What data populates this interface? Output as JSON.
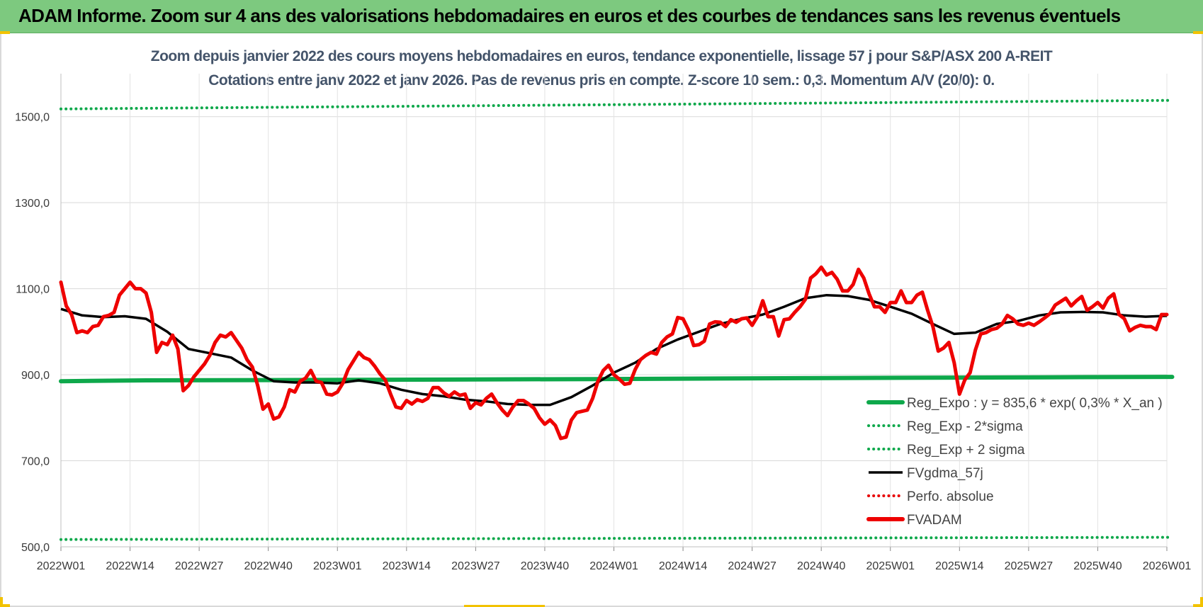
{
  "header": {
    "title": "ADAM Informe. Zoom sur 4 ans des valorisations hebdomadaires en euros et des courbes de tendances sans les revenus éventuels"
  },
  "chart_data": {
    "type": "line",
    "title": "Zoom depuis janvier 2022 des cours moyens hebdomadaires en euros, tendance exponentielle, lissage 57 j pour S&P/ASX 200 A-REIT",
    "subtitle": "Cotations entre janv 2022 et janv 2026. Pas de revenus pris en compte. Z-score 10 sem.: 0,3. Momentum A/V (20/0): 0.",
    "xlabel": "",
    "ylabel": "",
    "ylim": [
      500,
      1600
    ],
    "y_ticks": [
      "500,0",
      "700,0",
      "900,0",
      "1100,0",
      "1300,0",
      "1500,0"
    ],
    "y_tick_values": [
      500,
      700,
      900,
      1100,
      1300,
      1500
    ],
    "x_tick_labels": [
      "2022W01",
      "2022W14",
      "2022W27",
      "2022W40",
      "2023W01",
      "2023W14",
      "2023W27",
      "2023W40",
      "2024W01",
      "2024W14",
      "2024W27",
      "2024W40",
      "2025W01",
      "2025W14",
      "2025W27",
      "2025W40",
      "2026W01"
    ],
    "x_tick_weeks": [
      0,
      13,
      26,
      39,
      52,
      65,
      78,
      91,
      104,
      117,
      130,
      143,
      156,
      169,
      182,
      195,
      208
    ],
    "grid": true,
    "legend_position": "bottom-right",
    "series": [
      {
        "name": "Reg_Expo : y = 835,6 * exp( 0,3% *  X_an )",
        "color": "#0ea84b",
        "style": "solid-thick",
        "x": [
          0,
          16,
          50,
          100,
          140,
          185,
          209
        ],
        "values": [
          885,
          887,
          888,
          890,
          892,
          894,
          895
        ]
      },
      {
        "name": "Reg_Exp - 2*sigma",
        "color": "#0ea84b",
        "style": "dotted",
        "x": [
          0,
          209
        ],
        "values": [
          517,
          522
        ]
      },
      {
        "name": "Reg_Exp + 2 sigma",
        "color": "#0ea84b",
        "style": "dotted",
        "x": [
          0,
          209
        ],
        "values": [
          1518,
          1538
        ]
      },
      {
        "name": "FVgdma_57j",
        "color": "#000000",
        "style": "solid",
        "x": [
          0,
          4,
          8,
          12,
          16,
          20,
          24,
          28,
          32,
          36,
          40,
          44,
          48,
          52,
          56,
          60,
          64,
          68,
          72,
          76,
          80,
          84,
          88,
          92,
          96,
          100,
          104,
          108,
          112,
          116,
          120,
          124,
          128,
          132,
          136,
          140,
          144,
          148,
          152,
          156,
          160,
          164,
          168,
          172,
          176,
          180,
          184,
          188,
          192,
          196,
          200,
          204,
          208
        ],
        "values": [
          1053,
          1038,
          1034,
          1036,
          1030,
          1000,
          960,
          950,
          940,
          910,
          885,
          882,
          882,
          880,
          887,
          880,
          865,
          855,
          850,
          842,
          838,
          832,
          830,
          830,
          848,
          875,
          905,
          928,
          960,
          982,
          1000,
          1018,
          1030,
          1040,
          1058,
          1078,
          1085,
          1083,
          1074,
          1058,
          1042,
          1018,
          995,
          998,
          1018,
          1025,
          1038,
          1045,
          1046,
          1045,
          1038,
          1035,
          1037
        ]
      },
      {
        "name": "Perfo. absolue",
        "color": "#e80000",
        "style": "dotted",
        "x": [],
        "values": []
      },
      {
        "name": "FVADAM",
        "color": "#ee0000",
        "style": "solid-thick",
        "x": [
          0,
          1,
          2,
          3,
          4,
          5,
          6,
          7,
          8,
          9,
          10,
          11,
          12,
          13,
          14,
          15,
          16,
          17,
          18,
          19,
          20,
          21,
          22,
          23,
          24,
          25,
          26,
          27,
          28,
          29,
          30,
          31,
          32,
          33,
          34,
          35,
          36,
          37,
          38,
          39,
          40,
          41,
          42,
          43,
          44,
          45,
          46,
          47,
          48,
          49,
          50,
          51,
          52,
          53,
          54,
          55,
          56,
          57,
          58,
          59,
          60,
          61,
          62,
          63,
          64,
          65,
          66,
          67,
          68,
          69,
          70,
          71,
          72,
          73,
          74,
          75,
          76,
          77,
          78,
          79,
          80,
          81,
          82,
          83,
          84,
          85,
          86,
          87,
          88,
          89,
          90,
          91,
          92,
          93,
          94,
          95,
          96,
          97,
          98,
          99,
          100,
          101,
          102,
          103,
          104,
          105,
          106,
          107,
          108,
          109,
          110,
          111,
          112,
          113,
          114,
          115,
          116,
          117,
          118,
          119,
          120,
          121,
          122,
          123,
          124,
          125,
          126,
          127,
          128,
          129,
          130,
          131,
          132,
          133,
          134,
          135,
          136,
          137,
          138,
          139,
          140,
          141,
          142,
          143,
          144,
          145,
          146,
          147,
          148,
          149,
          150,
          151,
          152,
          153,
          154,
          155,
          156,
          157,
          158,
          159,
          160,
          161,
          162,
          163,
          164,
          165,
          166,
          167,
          168,
          169,
          170,
          171,
          172,
          173,
          174,
          175,
          176,
          177,
          178,
          179,
          180,
          181,
          182,
          183,
          184,
          185,
          186,
          187,
          188,
          189,
          190,
          191,
          192,
          193,
          194,
          195,
          196,
          197,
          198,
          199,
          200,
          201,
          202,
          203,
          204,
          205,
          206,
          207,
          208
        ],
        "values": [
          1115,
          1060,
          1040,
          998,
          1002,
          998,
          1012,
          1015,
          1035,
          1038,
          1045,
          1085,
          1100,
          1115,
          1100,
          1100,
          1090,
          1045,
          952,
          975,
          970,
          992,
          960,
          863,
          875,
          895,
          910,
          925,
          945,
          975,
          992,
          988,
          998,
          980,
          962,
          935,
          918,
          875,
          820,
          832,
          797,
          802,
          825,
          865,
          860,
          885,
          892,
          910,
          885,
          882,
          855,
          853,
          860,
          880,
          912,
          932,
          952,
          940,
          935,
          920,
          902,
          888,
          855,
          825,
          822,
          840,
          832,
          842,
          838,
          845,
          870,
          870,
          858,
          850,
          860,
          852,
          855,
          822,
          835,
          830,
          845,
          855,
          835,
          818,
          805,
          825,
          840,
          840,
          832,
          822,
          800,
          785,
          795,
          782,
          752,
          755,
          795,
          812,
          815,
          818,
          845,
          885,
          910,
          922,
          900,
          890,
          878,
          880,
          912,
          935,
          945,
          952,
          948,
          975,
          988,
          995,
          1033,
          1030,
          1005,
          968,
          970,
          978,
          1018,
          1023,
          1022,
          1012,
          1028,
          1022,
          1030,
          1032,
          1015,
          1035,
          1072,
          1035,
          1035,
          990,
          1028,
          1030,
          1045,
          1058,
          1075,
          1125,
          1135,
          1150,
          1132,
          1138,
          1122,
          1095,
          1095,
          1110,
          1145,
          1125,
          1088,
          1058,
          1058,
          1045,
          1068,
          1068,
          1095,
          1068,
          1068,
          1085,
          1092,
          1050,
          1012,
          955,
          962,
          975,
          928,
          855,
          888,
          905,
          958,
          995,
          998,
          1005,
          1008,
          1018,
          1038,
          1030,
          1018,
          1015,
          1020,
          1015,
          1023,
          1032,
          1042,
          1062,
          1070,
          1078,
          1060,
          1072,
          1082,
          1050,
          1058,
          1068,
          1055,
          1078,
          1088,
          1040,
          1030,
          1002,
          1010,
          1015,
          1012,
          1012,
          1005,
          1040,
          1040
        ]
      }
    ]
  }
}
